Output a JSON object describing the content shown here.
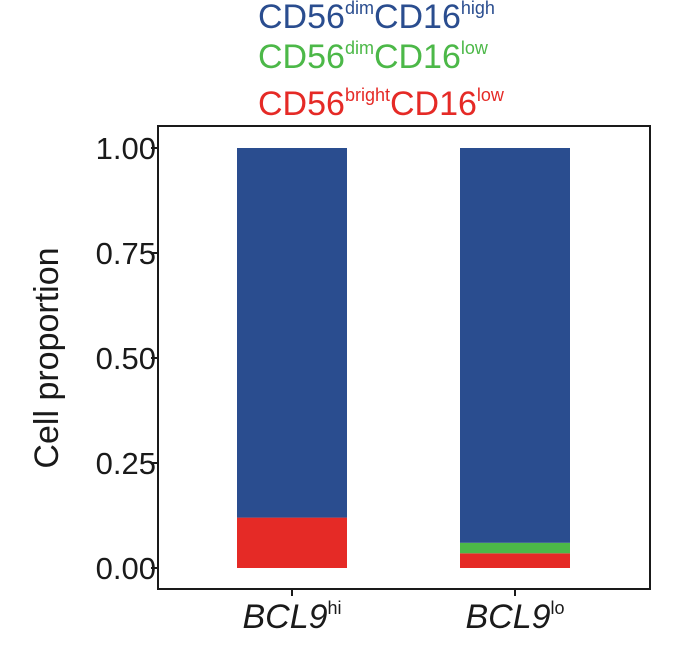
{
  "chart_data": {
    "type": "bar",
    "stacked": true,
    "ylabel": "Cell proportion",
    "ylim": [
      0,
      1
    ],
    "yticks": [
      "0.00",
      "0.25",
      "0.50",
      "0.75",
      "1.00"
    ],
    "categories": [
      {
        "label": "BCL9",
        "sup": "hi"
      },
      {
        "label": "BCL9",
        "sup": "lo"
      }
    ],
    "legend_position": "top",
    "series": [
      {
        "name_main": "CD56",
        "name_sup1": "bright",
        "name_mid": "CD16",
        "name_sup2": "low",
        "color": "#e52a26",
        "values": [
          0.12,
          0.035
        ]
      },
      {
        "name_main": "CD56",
        "name_sup1": "dim",
        "name_mid": "CD16",
        "name_sup2": "low",
        "color": "#4cb848",
        "values": [
          0.0,
          0.025
        ]
      },
      {
        "name_main": "CD56",
        "name_sup1": "dim",
        "name_mid": "CD16",
        "name_sup2": "high",
        "color": "#2a4d8f",
        "values": [
          0.88,
          0.94
        ]
      }
    ],
    "legend_order": [
      2,
      1,
      0
    ]
  }
}
